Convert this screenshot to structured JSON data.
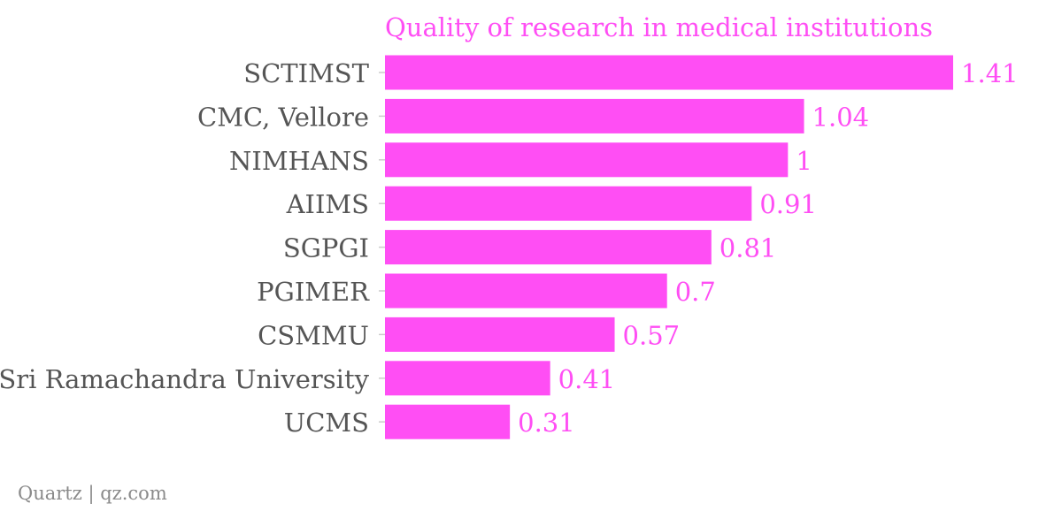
{
  "colors": {
    "bar": "#ff4ef4",
    "title": "#ff4ef4",
    "value_label": "#ff4ef4",
    "category_label": "#555555",
    "axis_tick": "#cccccc",
    "credit": "#8a8a8a"
  },
  "chart_data": {
    "type": "bar",
    "orientation": "horizontal",
    "title": "Quality of research in medical institutions",
    "categories": [
      "SCTIMST",
      "CMC, Vellore",
      "NIMHANS",
      "AIIMS",
      "SGPGI",
      "PGIMER",
      "CSMMU",
      "Sri Ramachandra University",
      "UCMS"
    ],
    "values": [
      1.41,
      1.04,
      1,
      0.91,
      0.81,
      0.7,
      0.57,
      0.41,
      0.31
    ],
    "value_labels": [
      "1.41",
      "1.04",
      "1",
      "0.91",
      "0.81",
      "0.7",
      "0.57",
      "0.41",
      "0.31"
    ],
    "xlim": [
      0,
      1.41
    ],
    "grid": false,
    "legend": "none"
  },
  "footer": {
    "credit": "Quartz | qz.com"
  }
}
